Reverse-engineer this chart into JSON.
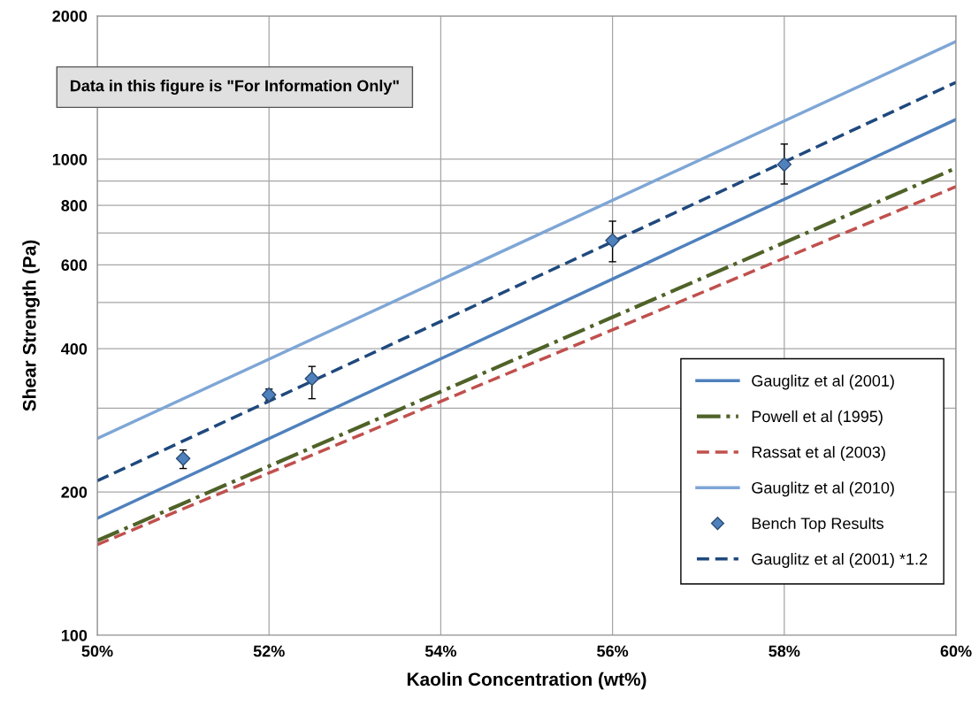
{
  "chart_data": {
    "type": "line",
    "xlabel": "Kaolin Concentration (wt%)",
    "ylabel": "Shear Strength (Pa)",
    "log": "y",
    "grid": true,
    "legend": "lower right",
    "xlim": [
      50,
      60
    ],
    "xticks": [
      {
        "value": 50,
        "label": "50%"
      },
      {
        "value": 52,
        "label": "52%"
      },
      {
        "value": 54,
        "label": "54%"
      },
      {
        "value": 56,
        "label": "56%"
      },
      {
        "value": 58,
        "label": "58%"
      },
      {
        "value": 60,
        "label": "60%"
      }
    ],
    "ylim": [
      100,
      2000
    ],
    "yticks": [
      100,
      200,
      {
        "value": 300,
        "label": null
      },
      400,
      {
        "value": 500,
        "label": null
      },
      600,
      {
        "value": 700,
        "label": null
      },
      800,
      {
        "value": 900,
        "label": null
      },
      1000,
      2000
    ],
    "annotations": [
      "Data in this figure is \"For Information Only\""
    ],
    "series": [
      {
        "name": "Gauglitz et al (2001)",
        "color": "#4f81bd",
        "line_style": "solid",
        "x": [
          50,
          60
        ],
        "values": [
          176,
          1212
        ]
      },
      {
        "name": "Powell et al (1995)",
        "color": "#4f6228",
        "line_style": "dashdot",
        "x": [
          50,
          60
        ],
        "values": [
          158,
          958
        ]
      },
      {
        "name": "Rassat et al (2003)",
        "color": "#c0504d",
        "line_style": "dashed",
        "x": [
          50,
          60
        ],
        "values": [
          155,
          876
        ]
      },
      {
        "name": "Gauglitz et al (2010)",
        "color": "#7ea6d6",
        "line_style": "solid",
        "x": [
          50,
          60
        ],
        "values": [
          259,
          1767
        ]
      },
      {
        "name": "Bench Top Results",
        "type": "scatter",
        "color": "#4f81bd",
        "marker": "diamond",
        "x": [
          51,
          52,
          52.5,
          56,
          58
        ],
        "values": [
          235,
          320,
          346,
          675,
          975
        ],
        "errors": [
          [
            224,
            245
          ],
          [
            312,
            329
          ],
          [
            314,
            367
          ],
          [
            609,
            741
          ],
          [
            887,
            1076
          ]
        ]
      },
      {
        "name": "Gauglitz et al (2001) *1.2",
        "color": "#1f497d",
        "line_style": "dashed",
        "x": [
          50,
          60
        ],
        "values": [
          211,
          1451
        ]
      }
    ]
  }
}
